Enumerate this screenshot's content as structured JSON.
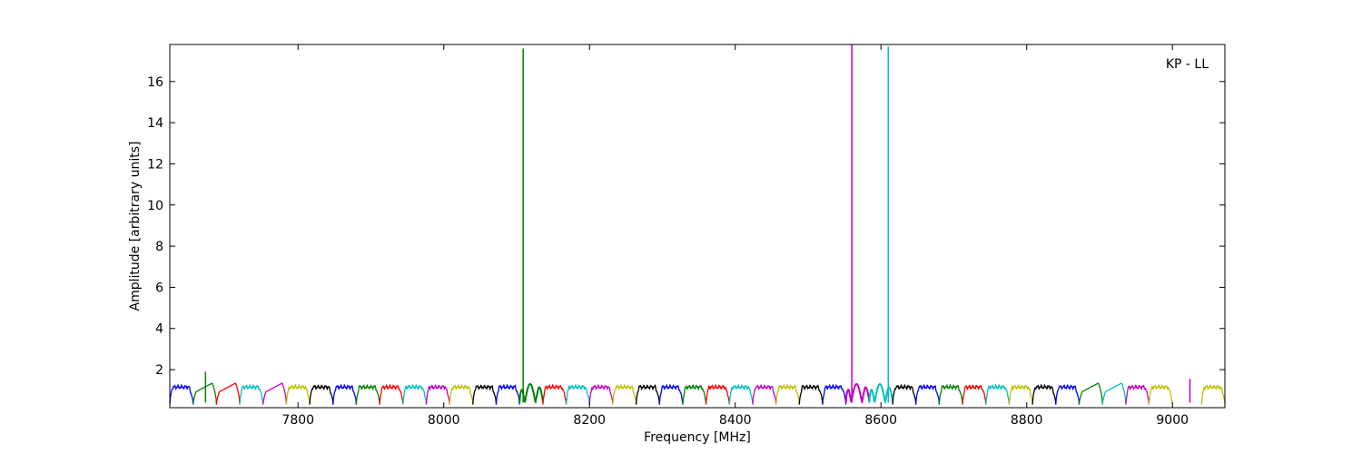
{
  "chart_data": {
    "type": "line",
    "title": "",
    "annotation": "KP - LL",
    "xlabel": "Frequency [MHz]",
    "ylabel": "Amplitude [arbitrary units]",
    "xlim": [
      7624,
      9072
    ],
    "ylim": [
      0.15,
      17.8
    ],
    "xticks": [
      7800,
      8000,
      8200,
      8400,
      8600,
      8800,
      9000
    ],
    "yticks": [
      2,
      4,
      6,
      8,
      10,
      12,
      14,
      16
    ],
    "grid": false,
    "channel_width_mhz": 32,
    "palette": [
      "#0000ff",
      "#008000",
      "#ff0000",
      "#00bfbf",
      "#bf00bf",
      "#bfbf00",
      "#000000"
    ],
    "channels": [
      {
        "start": 7624,
        "color": "#0000ff"
      },
      {
        "start": 7656,
        "color": "#008000",
        "spikes": [
          {
            "x": 7673,
            "y": 1.9
          }
        ],
        "ramp": true
      },
      {
        "start": 7688,
        "color": "#ff0000",
        "ramp": true
      },
      {
        "start": 7720,
        "color": "#00bfbf"
      },
      {
        "start": 7752,
        "color": "#bf00bf",
        "ramp": true
      },
      {
        "start": 7784,
        "color": "#bfbf00"
      },
      {
        "start": 7816,
        "color": "#000000"
      },
      {
        "start": 7848,
        "color": "#0000ff"
      },
      {
        "start": 7880,
        "color": "#008000"
      },
      {
        "start": 7912,
        "color": "#ff0000"
      },
      {
        "start": 7944,
        "color": "#00bfbf"
      },
      {
        "start": 7976,
        "color": "#bf00bf"
      },
      {
        "start": 8008,
        "color": "#bfbf00"
      },
      {
        "start": 8040,
        "color": "#000000"
      },
      {
        "start": 8072,
        "color": "#0000ff"
      },
      {
        "start": 8104,
        "color": "#008000",
        "spikes": [
          {
            "x": 8109,
            "y": 17.6
          }
        ],
        "dip": true
      },
      {
        "start": 8136,
        "color": "#ff0000"
      },
      {
        "start": 8168,
        "color": "#00bfbf"
      },
      {
        "start": 8200,
        "color": "#bf00bf"
      },
      {
        "start": 8232,
        "color": "#bfbf00"
      },
      {
        "start": 8264,
        "color": "#000000"
      },
      {
        "start": 8296,
        "color": "#0000ff"
      },
      {
        "start": 8328,
        "color": "#008000"
      },
      {
        "start": 8360,
        "color": "#ff0000"
      },
      {
        "start": 8392,
        "color": "#00bfbf"
      },
      {
        "start": 8424,
        "color": "#bf00bf"
      },
      {
        "start": 8456,
        "color": "#bfbf00"
      },
      {
        "start": 8488,
        "color": "#000000"
      },
      {
        "start": 8520,
        "color": "#0000ff"
      },
      {
        "start": 8552,
        "color": "#bf00bf",
        "spikes": [
          {
            "x": 8560,
            "y": 17.8
          }
        ],
        "dip": true
      },
      {
        "start": 8584,
        "color": "#00bfbf",
        "spikes": [
          {
            "x": 8610,
            "y": 17.7
          }
        ],
        "dip": true
      },
      {
        "start": 8616,
        "color": "#000000"
      },
      {
        "start": 8648,
        "color": "#0000ff"
      },
      {
        "start": 8680,
        "color": "#008000"
      },
      {
        "start": 8712,
        "color": "#ff0000"
      },
      {
        "start": 8744,
        "color": "#00bfbf"
      },
      {
        "start": 8776,
        "color": "#bfbf00"
      },
      {
        "start": 8808,
        "color": "#000000"
      },
      {
        "start": 8840,
        "color": "#0000ff"
      },
      {
        "start": 8872,
        "color": "#008000",
        "ramp": true
      },
      {
        "start": 8904,
        "color": "#00bfbf",
        "ramp": true
      },
      {
        "start": 8936,
        "color": "#bf00bf",
        "spikes": [
          {
            "x": 9024,
            "y": 1.55
          }
        ]
      },
      {
        "start": 8968,
        "color": "#bfbf00"
      },
      {
        "start": 9040,
        "color": "#bfbf00"
      }
    ]
  }
}
